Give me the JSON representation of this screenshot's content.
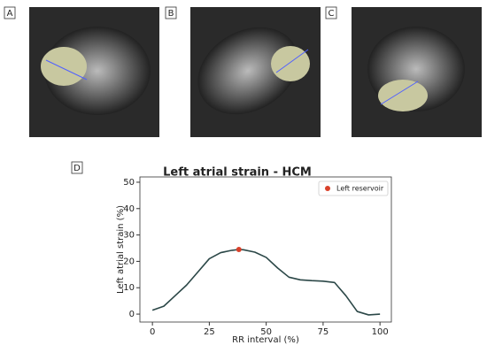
{
  "panels": {
    "labels": [
      "A",
      "B",
      "C",
      "D"
    ]
  },
  "chart_data": {
    "type": "line",
    "title": "Left atrial strain - HCM",
    "xlabel": "RR interval (%)",
    "ylabel": "Left atrial strain (%)",
    "x": [
      0,
      5,
      10,
      15,
      20,
      25,
      30,
      35,
      38,
      40,
      45,
      50,
      55,
      60,
      65,
      70,
      75,
      80,
      85,
      90,
      95,
      100
    ],
    "series": [
      {
        "color": "#2b4747",
        "values": [
          1.5,
          3,
          7,
          11,
          16,
          21,
          23.3,
          24.2,
          24.5,
          24.4,
          23.5,
          21.5,
          17.5,
          14,
          13,
          12.7,
          12.5,
          12,
          7,
          1,
          -0.3,
          0
        ]
      }
    ],
    "markers": [
      {
        "name": "Left reservoir",
        "color": "#d9412b",
        "x": 38,
        "y": 24.5
      }
    ],
    "xlim": [
      -5.5,
      105
    ],
    "ylim": [
      -3,
      52
    ],
    "xticks": [
      0,
      25,
      50,
      75,
      100
    ],
    "yticks": [
      0,
      10,
      20,
      30,
      40,
      50
    ],
    "legend": "upper right"
  }
}
